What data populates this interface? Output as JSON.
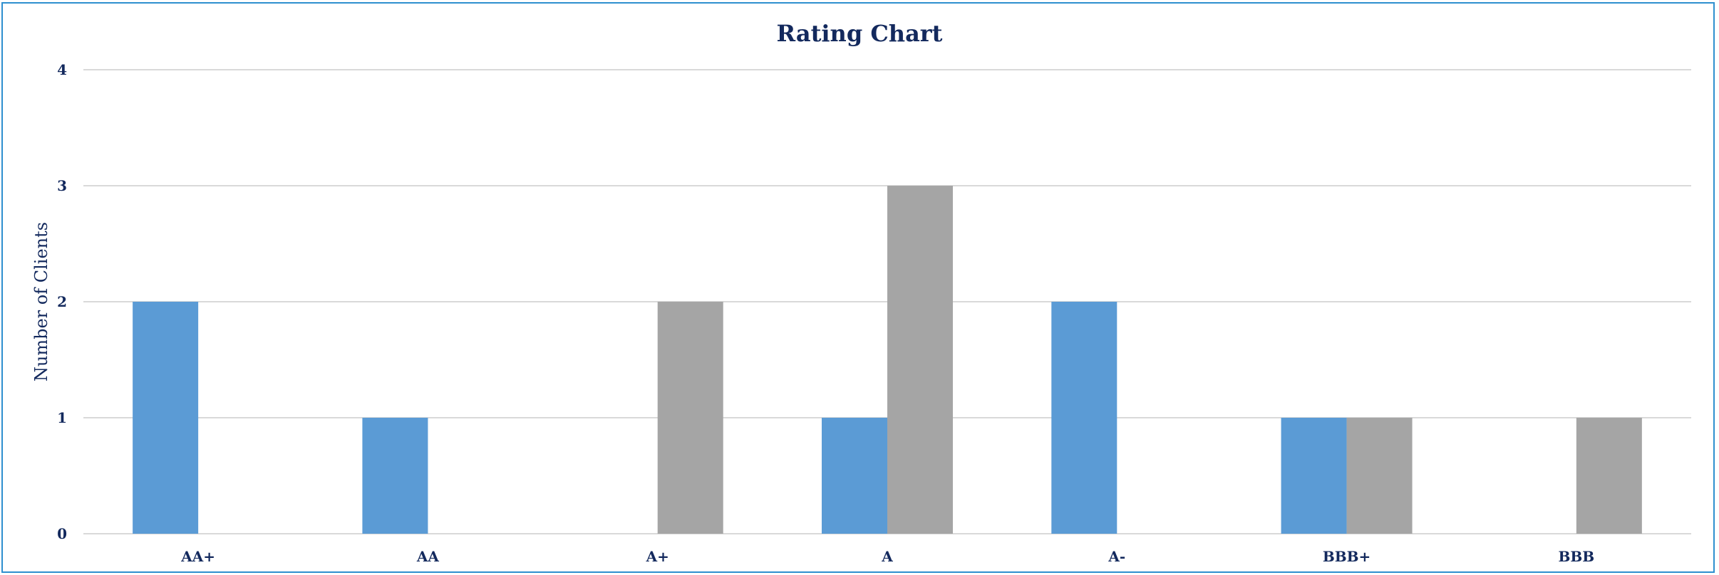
{
  "chart_data": {
    "type": "bar",
    "title": "Rating Chart",
    "xlabel": "",
    "ylabel": "Number of Clients",
    "categories": [
      "AA+",
      "AA",
      "A+",
      "A",
      "A-",
      "BBB+",
      "BBB"
    ],
    "series": [
      {
        "color": "#5b9bd5",
        "values": [
          2,
          1,
          0,
          1,
          2,
          1,
          0
        ]
      },
      {
        "color": "#a5a5a5",
        "values": [
          0,
          0,
          2,
          3,
          0,
          1,
          1
        ]
      }
    ],
    "ylim": [
      0,
      4
    ],
    "yticks": [
      "0",
      "1",
      "2",
      "3",
      "4"
    ],
    "grid": true,
    "legend": "none"
  },
  "colors": {
    "text": "#13295d",
    "gridline": "#d9d9d9",
    "border": "#2e8fcf"
  }
}
